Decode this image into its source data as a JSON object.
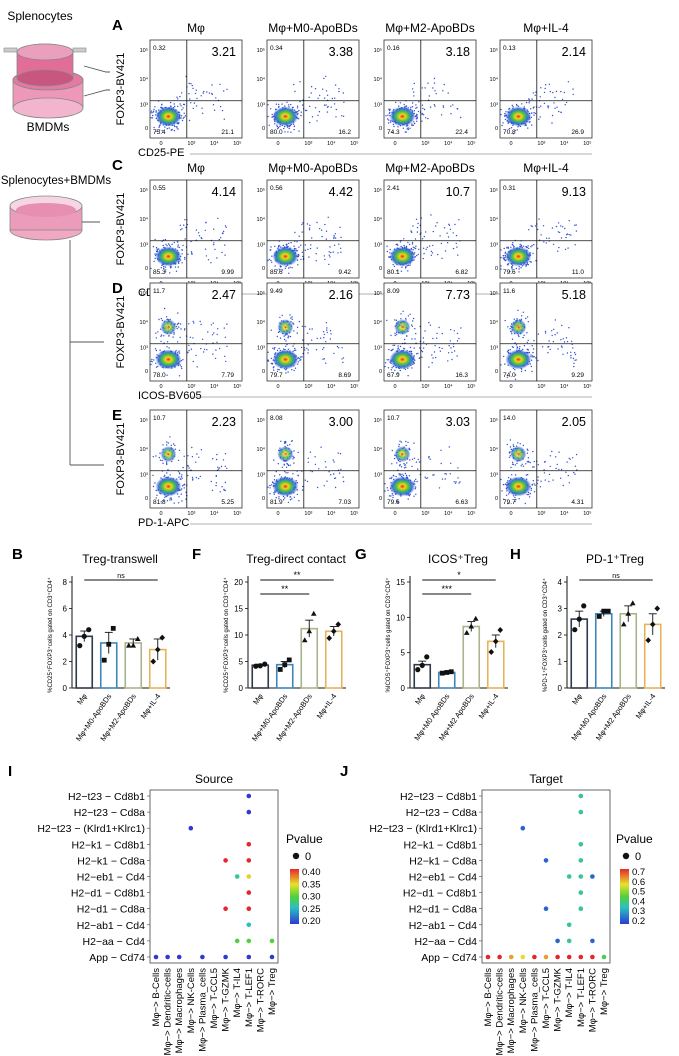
{
  "schematic": {
    "top_label": "Splenocytes",
    "bottom_label": "BMDMs",
    "mid_label": "Splenocytes+BMDMs"
  },
  "flow_conditions": [
    "Mφ",
    "Mφ+M0-ApoBDs",
    "Mφ+M2-ApoBDs",
    "Mφ+IL-4"
  ],
  "flow_rows": [
    {
      "letter": "A",
      "ylabel": "FOXP3-BV421",
      "xlabel": "CD25-PE",
      "show_titles": true,
      "panels": [
        {
          "ur": "3.21",
          "ul": "0.32",
          "ll": "75.4",
          "lr": "21.1"
        },
        {
          "ur": "3.38",
          "ul": "0.34",
          "ll": "80.0",
          "lr": "16.2"
        },
        {
          "ur": "3.18",
          "ul": "0.16",
          "ll": "74.3",
          "lr": "22.4"
        },
        {
          "ur": "2.14",
          "ul": "0.13",
          "ll": "70.8",
          "lr": "26.9"
        }
      ]
    },
    {
      "letter": "C",
      "ylabel": "FOXP3-BV421",
      "xlabel": "CD25-PE",
      "show_titles": true,
      "panels": [
        {
          "ur": "4.14",
          "ul": "0.55",
          "ll": "85.3",
          "lr": "9.99"
        },
        {
          "ur": "4.42",
          "ul": "0.56",
          "ll": "85.6",
          "lr": "9.42"
        },
        {
          "ur": "10.7",
          "ul": "2.41",
          "ll": "80.1",
          "lr": "6.82"
        },
        {
          "ur": "9.13",
          "ul": "0.31",
          "ll": "79.6",
          "lr": "11.0"
        }
      ]
    },
    {
      "letter": "D",
      "ylabel": "FOXP3-BV421",
      "xlabel": "ICOS-BV605",
      "show_titles": false,
      "panels": [
        {
          "ur": "2.47",
          "ul": "11.7",
          "ll": "78.0",
          "lr": "7.79"
        },
        {
          "ur": "2.16",
          "ul": "9.49",
          "ll": "79.7",
          "lr": "8.69"
        },
        {
          "ur": "7.73",
          "ul": "8.09",
          "ll": "67.9",
          "lr": "16.3"
        },
        {
          "ur": "5.18",
          "ul": "11.6",
          "ll": "74.0",
          "lr": "9.29"
        }
      ]
    },
    {
      "letter": "E",
      "ylabel": "FOXP3-BV421",
      "xlabel": "PD-1-APC",
      "show_titles": false,
      "panels": [
        {
          "ur": "2.23",
          "ul": "10.7",
          "ll": "81.8",
          "lr": "5.25"
        },
        {
          "ur": "3.00",
          "ul": "8.08",
          "ll": "81.9",
          "lr": "7.03"
        },
        {
          "ur": "3.03",
          "ul": "10.7",
          "ll": "79.6",
          "lr": "6.63"
        },
        {
          "ur": "2.05",
          "ul": "14.0",
          "ll": "79.7",
          "lr": "4.31"
        }
      ]
    }
  ],
  "flow_axis": {
    "yticks": [
      "0",
      "10³",
      "10⁴",
      "10⁵"
    ],
    "xticks": [
      "0",
      "10³",
      "10⁴",
      "10⁵"
    ]
  },
  "chart_data": [
    {
      "type": "bar",
      "letter": "B",
      "title": "Treg-transwell",
      "ylabel": "%CD25⁺FOXP3⁺cells gated on CD3⁺CD4⁺",
      "categories": [
        "Mφ",
        "Mφ+M0-ApoBDs",
        "Mφ+M2-ApoBDs",
        "Mφ+IL-4"
      ],
      "values": [
        3.9,
        3.4,
        3.4,
        2.9
      ],
      "errors": [
        0.4,
        0.8,
        0.3,
        0.8
      ],
      "points": [
        [
          3.2,
          3.9,
          4.4
        ],
        [
          2.1,
          3.3,
          4.5
        ],
        [
          3.2,
          3.2,
          3.7
        ],
        [
          2.0,
          2.9,
          3.8
        ]
      ],
      "ylim": [
        0,
        8
      ],
      "yticks": [
        0,
        2,
        4,
        6,
        8
      ],
      "sig": [
        {
          "from": 0,
          "to": 3,
          "label": "ns"
        }
      ]
    },
    {
      "type": "bar",
      "letter": "F",
      "title": "Treg-direct contact",
      "ylabel": "%CD25⁺FOXP3⁺cells gated on CD3⁺CD4⁺",
      "categories": [
        "Mφ",
        "Mφ+M0-ApoBDs",
        "Mφ+M2-ApoBDs",
        "Mφ+IL-4"
      ],
      "values": [
        4.3,
        4.4,
        11.2,
        10.7
      ],
      "errors": [
        0.2,
        0.6,
        1.6,
        0.9
      ],
      "points": [
        [
          4.1,
          4.2,
          4.5
        ],
        [
          3.5,
          4.4,
          5.3
        ],
        [
          9.0,
          10.7,
          14.0
        ],
        [
          9.4,
          10.7,
          12.0
        ]
      ],
      "ylim": [
        0,
        20
      ],
      "yticks": [
        0,
        5,
        10,
        15,
        20
      ],
      "sig": [
        {
          "from": 0,
          "to": 2,
          "label": "**"
        },
        {
          "from": 0,
          "to": 3,
          "label": "**"
        }
      ]
    },
    {
      "type": "bar",
      "letter": "G",
      "title": "ICOS⁺Treg",
      "ylabel": "%ICOS⁺FOXP3⁺cells gated on CD3⁺CD4⁺",
      "categories": [
        "Mφ",
        "Mφ+M0 ApoBDs",
        "Mφ+M2 ApoBDs",
        "Mφ+IL-4"
      ],
      "values": [
        3.3,
        2.2,
        8.7,
        6.6
      ],
      "errors": [
        0.5,
        0.1,
        0.7,
        0.9
      ],
      "points": [
        [
          2.6,
          3.2,
          4.4
        ],
        [
          2.1,
          2.2,
          2.3
        ],
        [
          7.8,
          8.7,
          9.8
        ],
        [
          5.1,
          6.6,
          8.2
        ]
      ],
      "ylim": [
        0,
        15
      ],
      "yticks": [
        0,
        5,
        10,
        15
      ],
      "sig": [
        {
          "from": 0,
          "to": 2,
          "label": "***"
        },
        {
          "from": 0,
          "to": 3,
          "label": "*"
        }
      ]
    },
    {
      "type": "bar",
      "letter": "H",
      "title": "PD-1⁺Treg",
      "ylabel": "%PD-1⁺FOXP3⁺cells gated on CD3⁺CD4⁺",
      "categories": [
        "Mφ",
        "Mφ+M0 ApoBDs",
        "Mφ+M2 ApoBDs",
        "Mφ+IL-4"
      ],
      "values": [
        2.6,
        2.8,
        2.8,
        2.4
      ],
      "errors": [
        0.3,
        0.1,
        0.3,
        0.4
      ],
      "points": [
        [
          2.2,
          2.6,
          3.1
        ],
        [
          2.7,
          2.9,
          2.9
        ],
        [
          2.4,
          2.8,
          3.2
        ],
        [
          1.8,
          2.4,
          3.0
        ]
      ],
      "ylim": [
        0,
        4
      ],
      "yticks": [
        0,
        1,
        2,
        3,
        4
      ],
      "sig": [
        {
          "from": 0,
          "to": 3,
          "label": "ns"
        }
      ]
    },
    {
      "type": "scatter",
      "letter": "I",
      "title": "Source",
      "y_categories": [
        "H2−t23 − Cd8b1",
        "H2−t23 − Cd8a",
        "H2−t23 − (Klrd1+Klrc1)",
        "H2−k1 − Cd8b1",
        "H2−k1 − Cd8a",
        "H2−eb1 − Cd4",
        "H2−d1 − Cd8b1",
        "H2−d1 − Cd8a",
        "H2−ab1 − Cd4",
        "H2−aa − Cd4",
        "App − Cd74"
      ],
      "x_categories": [
        "Mφ−> B-Cells",
        "Mφ−> Dendritic-cells",
        "Mφ−> Macrophages",
        "Mφ−> NK-Cells",
        "Mφ−> Plasma_cells",
        "Mφ−> T-CCL5",
        "Mφ−> T-GZMK",
        "Mφ−> T-IL4",
        "Mφ−> T-LEF1",
        "Mφ−> T-RORC",
        "Mφ−> Treg"
      ],
      "points": [
        [
          8,
          0,
          0.2
        ],
        [
          8,
          1,
          0.2
        ],
        [
          3,
          2,
          0.2
        ],
        [
          8,
          3,
          0.4
        ],
        [
          6,
          4,
          0.4
        ],
        [
          8,
          4,
          0.4
        ],
        [
          7,
          5,
          0.27
        ],
        [
          8,
          5,
          0.35
        ],
        [
          8,
          6,
          0.4
        ],
        [
          6,
          7,
          0.4
        ],
        [
          8,
          7,
          0.4
        ],
        [
          8,
          8,
          0.26
        ],
        [
          7,
          9,
          0.3
        ],
        [
          8,
          9,
          0.3
        ],
        [
          10,
          9,
          0.3
        ],
        [
          0,
          10,
          0.2
        ],
        [
          1,
          10,
          0.2
        ],
        [
          2,
          10,
          0.2
        ],
        [
          4,
          10,
          0.2
        ],
        [
          6,
          10,
          0.2
        ],
        [
          8,
          10,
          0.2
        ],
        [
          10,
          10,
          0.2
        ]
      ],
      "legend_title": "Pvalue",
      "legend_point": "0",
      "color_range": [
        0.2,
        0.4
      ],
      "color_ticks": [
        "0.40",
        "0.35",
        "0.30",
        "0.25",
        "0.20"
      ]
    },
    {
      "type": "scatter",
      "letter": "J",
      "title": "Target",
      "y_categories": [
        "H2−t23 − Cd8b1",
        "H2−t23 − Cd8a",
        "H2−t23 − (Klrd1+Klrc1)",
        "H2−k1 − Cd8b1",
        "H2−k1 − Cd8a",
        "H2−eb1 − Cd4",
        "H2−d1 − Cd8b1",
        "H2−d1 − Cd8a",
        "H2−ab1 − Cd4",
        "H2−aa − Cd4",
        "App − Cd74"
      ],
      "x_categories": [
        "Mφ−> B-Cells",
        "Mφ−> Dendritic-cells",
        "Mφ−> Macrophages",
        "Mφ−> NK-Cells",
        "Mφ−> Plasma_cells",
        "Mφ−> T-CCL5",
        "Mφ−> T-GZMK",
        "Mφ−> T-IL4",
        "Mφ−> T-LEF1",
        "Mφ−> T-RORC",
        "Mφ−> Treg"
      ],
      "points": [
        [
          8,
          0,
          0.35
        ],
        [
          8,
          1,
          0.35
        ],
        [
          3,
          2,
          0.2
        ],
        [
          8,
          3,
          0.35
        ],
        [
          5,
          4,
          0.2
        ],
        [
          8,
          4,
          0.35
        ],
        [
          7,
          5,
          0.35
        ],
        [
          8,
          5,
          0.35
        ],
        [
          9,
          5,
          0.2
        ],
        [
          8,
          6,
          0.35
        ],
        [
          5,
          7,
          0.2
        ],
        [
          8,
          7,
          0.35
        ],
        [
          7,
          8,
          0.35
        ],
        [
          6,
          9,
          0.2
        ],
        [
          7,
          9,
          0.35
        ],
        [
          9,
          9,
          0.2
        ],
        [
          0,
          10,
          0.7
        ],
        [
          1,
          10,
          0.7
        ],
        [
          2,
          10,
          0.6
        ],
        [
          3,
          10,
          0.55
        ],
        [
          4,
          10,
          0.7
        ],
        [
          5,
          10,
          0.6
        ],
        [
          6,
          10,
          0.7
        ],
        [
          7,
          10,
          0.7
        ],
        [
          8,
          10,
          0.7
        ],
        [
          9,
          10,
          0.7
        ],
        [
          10,
          10,
          0.4
        ]
      ],
      "legend_title": "Pvalue",
      "legend_point": "0",
      "color_range": [
        0.15,
        0.7
      ],
      "color_ticks": [
        "0.7",
        "0.6",
        "0.5",
        "0.4",
        "0.3",
        "0.2"
      ]
    }
  ]
}
